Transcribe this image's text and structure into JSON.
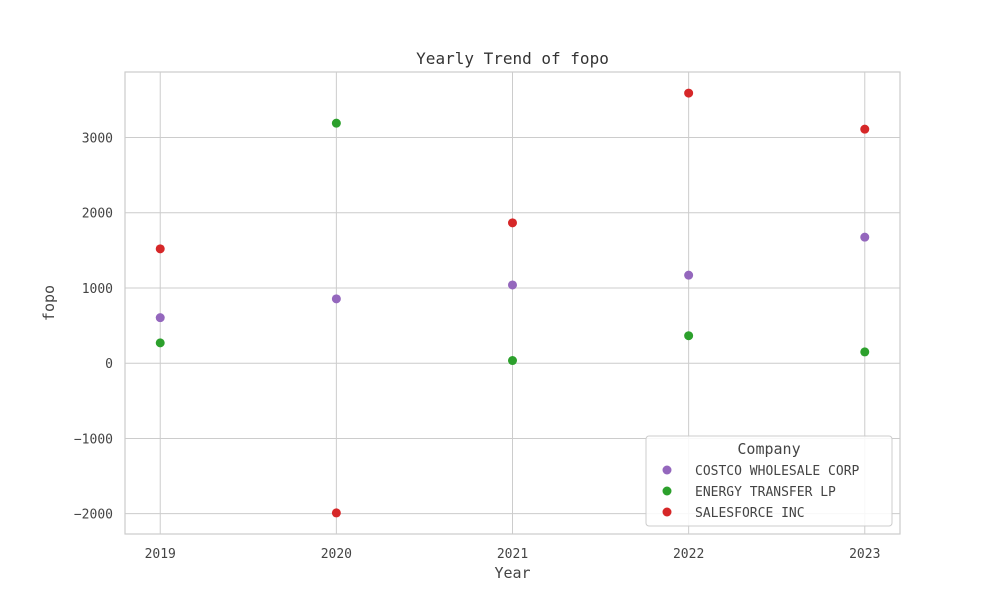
{
  "chart_data": {
    "type": "scatter",
    "title": "Yearly Trend of fopo",
    "xlabel": "Year",
    "ylabel": "fopo",
    "x": [
      2019,
      2020,
      2021,
      2022,
      2023
    ],
    "x_tick_labels": [
      "2019",
      "2020",
      "2021",
      "2022",
      "2023"
    ],
    "y_ticks": [
      -2000,
      -1000,
      0,
      1000,
      2000,
      3000
    ],
    "y_tick_labels": [
      "−2000",
      "−1000",
      "0",
      "1000",
      "2000",
      "3000"
    ],
    "xlim": [
      2018.8,
      2023.2
    ],
    "ylim": [
      -2270,
      3870
    ],
    "grid": true,
    "legend": {
      "title": "Company",
      "placement": "lower-right"
    },
    "series": [
      {
        "name": "COSTCO WHOLESALE CORP",
        "color": "#9467bd",
        "values": [
          605,
          855,
          1040,
          1170,
          1675
        ]
      },
      {
        "name": "ENERGY TRANSFER LP",
        "color": "#2ca02c",
        "values": [
          270,
          3190,
          35,
          365,
          150
        ]
      },
      {
        "name": "SALESFORCE INC",
        "color": "#d62728",
        "values": [
          1520,
          -1990,
          1865,
          3590,
          3110
        ]
      }
    ]
  }
}
